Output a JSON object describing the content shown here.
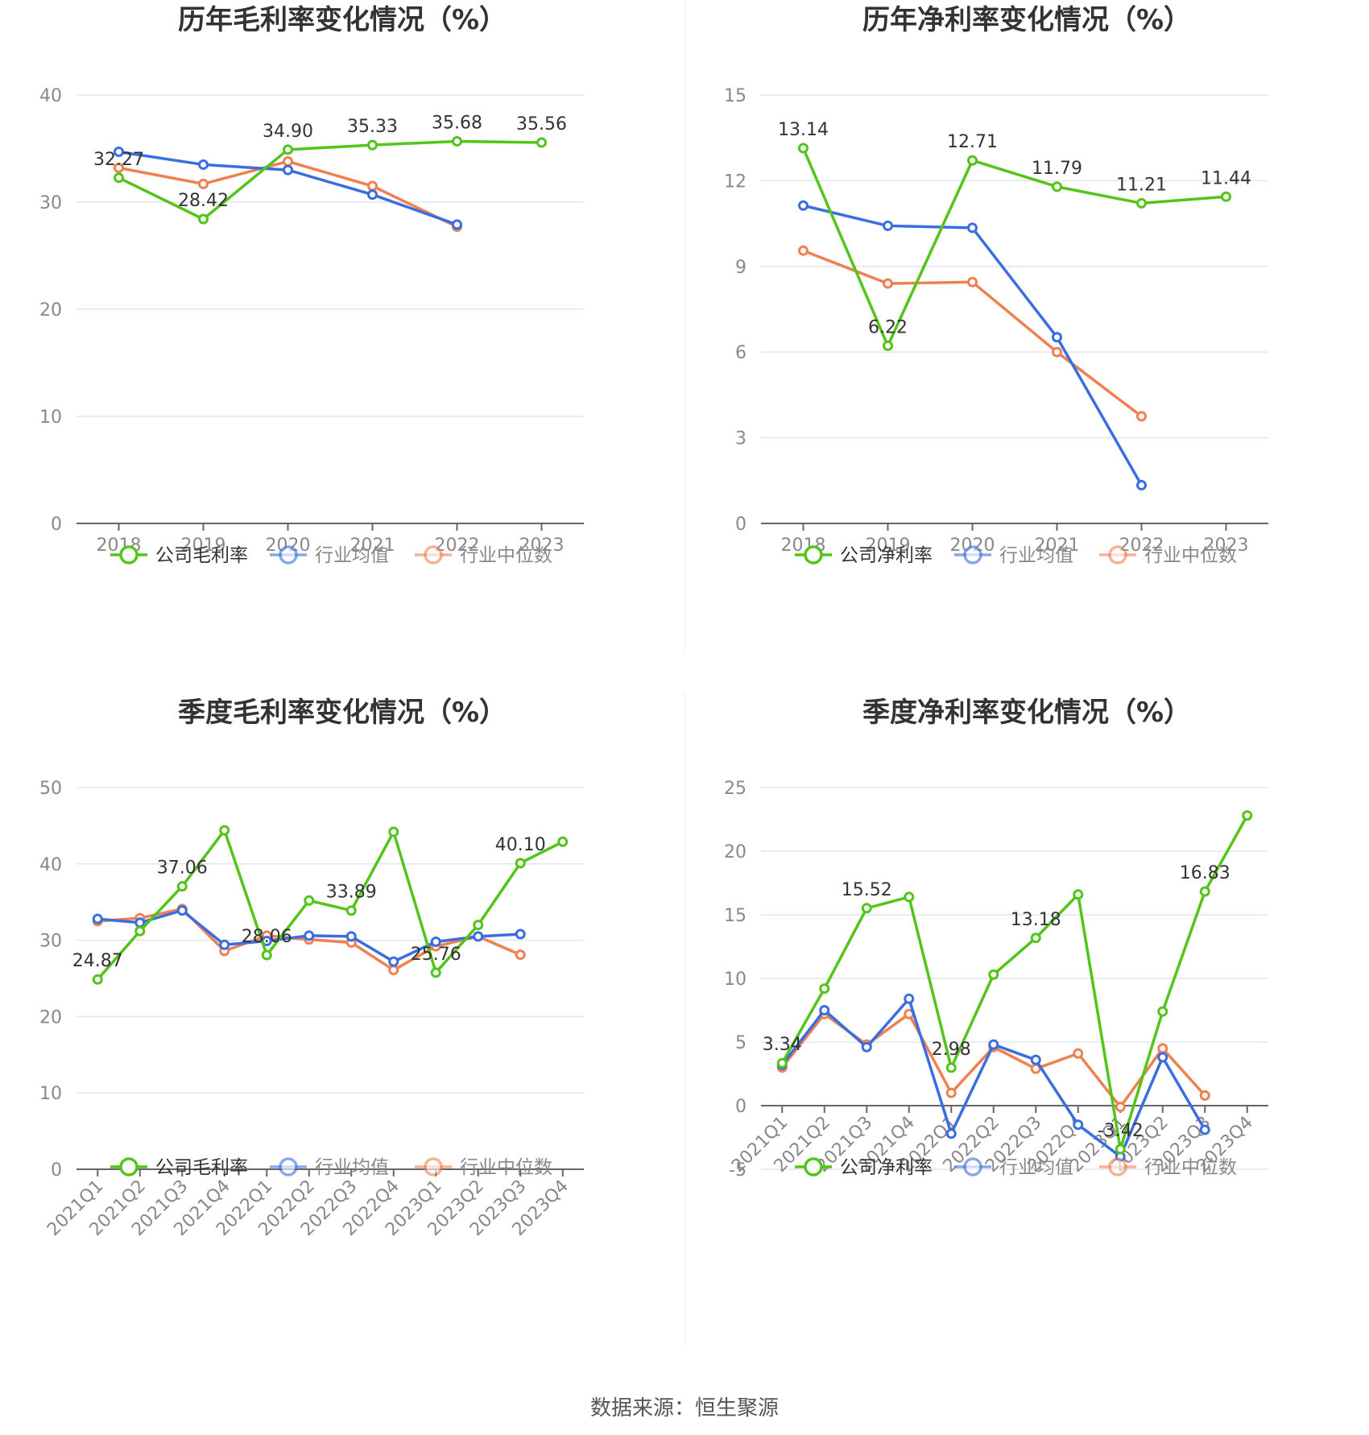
{
  "source": "数据来源：恒生聚源",
  "colors": {
    "company": "#52c41a",
    "avg": "#3a6ee0",
    "median": "#f08050",
    "grid": "#e0e6f1",
    "axis": "#666666"
  },
  "chart_data": [
    {
      "type": "line",
      "title": "历年毛利率变化情况（%）",
      "categories": [
        "2018",
        "2019",
        "2020",
        "2021",
        "2022",
        "2023"
      ],
      "ylim": [
        0,
        40
      ],
      "yticks": [
        0,
        10,
        20,
        30,
        40
      ],
      "series": [
        {
          "name": "公司毛利率",
          "key": "company",
          "values": [
            32.27,
            28.42,
            34.9,
            35.33,
            35.68,
            35.56
          ],
          "labels": [
            true,
            true,
            true,
            true,
            true,
            true
          ]
        },
        {
          "name": "行业均值",
          "key": "avg",
          "values": [
            34.7,
            33.5,
            33.0,
            30.7,
            27.9,
            null
          ]
        },
        {
          "name": "行业中位数",
          "key": "median",
          "values": [
            33.2,
            31.7,
            33.8,
            31.5,
            27.7,
            null
          ]
        }
      ]
    },
    {
      "type": "line",
      "title": "历年净利率变化情况（%）",
      "categories": [
        "2018",
        "2019",
        "2020",
        "2021",
        "2022",
        "2023"
      ],
      "ylim": [
        0,
        15
      ],
      "yticks": [
        0,
        3,
        6,
        9,
        12,
        15
      ],
      "series": [
        {
          "name": "公司净利率",
          "key": "company",
          "values": [
            13.14,
            6.22,
            12.71,
            11.79,
            11.21,
            11.44
          ],
          "labels": [
            true,
            true,
            true,
            true,
            true,
            true
          ]
        },
        {
          "name": "行业均值",
          "key": "avg",
          "values": [
            11.13,
            10.42,
            10.35,
            6.52,
            1.34,
            null
          ]
        },
        {
          "name": "行业中位数",
          "key": "median",
          "values": [
            9.55,
            8.4,
            8.45,
            6.0,
            3.75,
            null
          ]
        }
      ]
    },
    {
      "type": "line",
      "title": "季度毛利率变化情况（%）",
      "categories": [
        "2021Q1",
        "2021Q2",
        "2021Q3",
        "2021Q4",
        "2022Q1",
        "2022Q2",
        "2022Q3",
        "2022Q4",
        "2023Q1",
        "2023Q2",
        "2023Q3",
        "2023Q4"
      ],
      "ylim": [
        0,
        50
      ],
      "yticks": [
        0,
        10,
        20,
        30,
        40,
        50
      ],
      "series": [
        {
          "name": "公司毛利率",
          "key": "company",
          "values": [
            24.87,
            31.2,
            37.06,
            44.4,
            28.06,
            35.2,
            33.89,
            44.2,
            25.76,
            32.0,
            40.1,
            42.9
          ],
          "labels": [
            true,
            false,
            true,
            false,
            true,
            false,
            true,
            false,
            true,
            false,
            true,
            false
          ]
        },
        {
          "name": "行业均值",
          "key": "avg",
          "values": [
            32.8,
            32.3,
            33.9,
            29.4,
            29.9,
            30.6,
            30.5,
            27.2,
            29.8,
            30.5,
            30.8,
            null
          ]
        },
        {
          "name": "行业中位数",
          "key": "median",
          "values": [
            32.5,
            32.9,
            34.1,
            28.6,
            30.6,
            30.1,
            29.7,
            26.1,
            29.2,
            30.5,
            28.1,
            null
          ]
        }
      ]
    },
    {
      "type": "line",
      "title": "季度净利率变化情况（%）",
      "categories": [
        "2021Q1",
        "2021Q2",
        "2021Q3",
        "2021Q4",
        "2022Q1",
        "2022Q2",
        "2022Q3",
        "2022Q4",
        "2023Q1",
        "2023Q2",
        "2023Q3",
        "2023Q4"
      ],
      "ylim": [
        -5,
        25
      ],
      "yticks": [
        -5,
        0,
        5,
        10,
        15,
        20,
        25
      ],
      "series": [
        {
          "name": "公司净利率",
          "key": "company",
          "values": [
            3.34,
            9.2,
            15.52,
            16.4,
            2.98,
            10.3,
            13.18,
            16.6,
            -3.42,
            7.4,
            16.83,
            22.8
          ],
          "labels": [
            true,
            false,
            true,
            false,
            true,
            false,
            true,
            false,
            true,
            false,
            true,
            false
          ]
        },
        {
          "name": "行业均值",
          "key": "avg",
          "values": [
            3.2,
            7.5,
            4.6,
            8.4,
            -2.2,
            4.8,
            3.6,
            -1.5,
            -4.0,
            3.8,
            -1.9,
            null
          ]
        },
        {
          "name": "行业中位数",
          "key": "median",
          "values": [
            3.0,
            7.2,
            4.8,
            7.2,
            1.0,
            4.6,
            2.9,
            4.1,
            -0.1,
            4.5,
            0.8,
            null
          ]
        }
      ]
    }
  ]
}
